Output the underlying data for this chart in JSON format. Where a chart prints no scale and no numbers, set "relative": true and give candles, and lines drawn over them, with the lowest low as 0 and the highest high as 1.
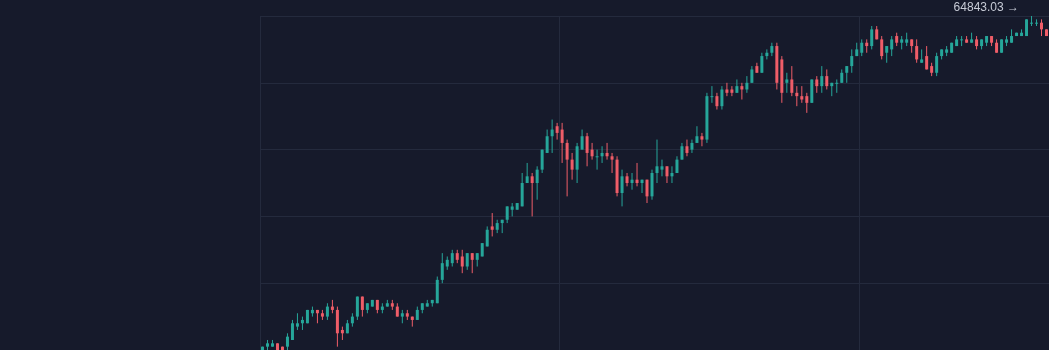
{
  "chart_data": {
    "type": "candlestick",
    "relative": true,
    "grid": true,
    "annotations": [
      "64843.03 →"
    ],
    "categories": [
      null,
      null,
      null,
      null,
      null,
      null,
      null,
      null,
      null,
      null,
      null,
      null,
      null,
      null,
      null,
      null,
      null,
      null,
      null,
      null,
      null,
      null,
      null,
      null,
      null,
      null,
      null,
      null,
      null,
      null,
      null,
      null,
      null,
      null,
      null,
      null,
      null,
      null,
      null,
      null,
      null,
      null,
      null,
      null,
      null,
      null,
      null,
      null,
      null,
      null,
      null,
      null,
      null,
      null,
      null,
      null,
      null,
      null,
      null,
      null,
      null,
      null,
      null,
      null,
      null,
      null,
      null,
      null,
      null,
      null,
      null,
      null,
      null,
      null,
      null,
      null,
      null,
      null,
      null,
      null,
      null,
      null,
      null,
      null,
      null,
      null,
      null,
      null,
      null,
      null,
      null,
      null,
      null,
      null,
      null,
      null,
      null,
      null,
      null,
      null,
      null,
      null,
      null,
      null,
      null,
      null,
      null,
      null,
      null,
      null,
      null,
      null,
      null,
      null,
      null,
      null,
      null,
      null,
      null,
      null,
      null,
      null,
      null,
      null,
      null,
      null,
      null,
      null,
      null,
      null,
      null,
      null,
      null,
      null,
      null,
      null,
      null,
      null,
      null,
      null,
      null,
      null,
      null,
      null,
      null,
      null,
      null,
      null,
      null,
      null,
      null,
      null,
      null,
      null,
      null,
      null,
      null,
      null
    ],
    "ohlc": [
      [
        0,
        0.01,
        0,
        0.01
      ],
      [
        0.01,
        0.03,
        0,
        0.02
      ],
      [
        0.01,
        0.03,
        0.01,
        0.02
      ],
      [
        0.02,
        0.02,
        0,
        0
      ],
      [
        0.01,
        0.01,
        0,
        0
      ],
      [
        0.01,
        0.05,
        0,
        0.04
      ],
      [
        0.03,
        0.09,
        0.03,
        0.08
      ],
      [
        0.07,
        0.11,
        0.06,
        0.08
      ],
      [
        0.08,
        0.1,
        0.06,
        0.09
      ],
      [
        0.08,
        0.12,
        0.08,
        0.12
      ],
      [
        0.11,
        0.13,
        0.1,
        0.12
      ],
      [
        0.12,
        0.12,
        0.08,
        0.11
      ],
      [
        0.11,
        0.12,
        0.09,
        0.1
      ],
      [
        0.1,
        0.14,
        0.09,
        0.13
      ],
      [
        0.13,
        0.15,
        0.11,
        0.12
      ],
      [
        0.12,
        0.13,
        0.01,
        0.05
      ],
      [
        0.06,
        0.07,
        0.03,
        0.05
      ],
      [
        0.05,
        0.09,
        0.05,
        0.08
      ],
      [
        0.08,
        0.11,
        0.07,
        0.1
      ],
      [
        0.1,
        0.16,
        0.09,
        0.16
      ],
      [
        0.16,
        0.16,
        0.1,
        0.12
      ],
      [
        0.12,
        0.14,
        0.11,
        0.14
      ],
      [
        0.13,
        0.15,
        0.13,
        0.15
      ],
      [
        0.15,
        0.15,
        0.11,
        0.12
      ],
      [
        0.12,
        0.14,
        0.11,
        0.13
      ],
      [
        0.13,
        0.15,
        0.13,
        0.14
      ],
      [
        0.14,
        0.15,
        0.12,
        0.13
      ],
      [
        0.13,
        0.14,
        0.1,
        0.1
      ],
      [
        0.1,
        0.12,
        0.08,
        0.11
      ],
      [
        0.11,
        0.12,
        0.09,
        0.1
      ],
      [
        0.1,
        0.1,
        0.07,
        0.09
      ],
      [
        0.09,
        0.13,
        0.09,
        0.12
      ],
      [
        0.12,
        0.14,
        0.11,
        0.14
      ],
      [
        0.13,
        0.15,
        0.13,
        0.14
      ],
      [
        0.14,
        0.15,
        0.13,
        0.15
      ],
      [
        0.14,
        0.22,
        0.14,
        0.21
      ],
      [
        0.21,
        0.29,
        0.2,
        0.26
      ],
      [
        0.25,
        0.28,
        0.24,
        0.27
      ],
      [
        0.26,
        0.3,
        0.25,
        0.29
      ],
      [
        0.29,
        0.3,
        0.26,
        0.27
      ],
      [
        0.28,
        0.3,
        0.23,
        0.25
      ],
      [
        0.25,
        0.29,
        0.24,
        0.29
      ],
      [
        0.29,
        0.29,
        0.23,
        0.27
      ],
      [
        0.27,
        0.29,
        0.25,
        0.29
      ],
      [
        0.28,
        0.32,
        0.28,
        0.32
      ],
      [
        0.31,
        0.37,
        0.31,
        0.36
      ],
      [
        0.37,
        0.41,
        0.34,
        0.36
      ],
      [
        0.36,
        0.39,
        0.35,
        0.38
      ],
      [
        0.38,
        0.39,
        0.35,
        0.39
      ],
      [
        0.39,
        0.43,
        0.38,
        0.43
      ],
      [
        0.42,
        0.44,
        0.4,
        0.43
      ],
      [
        0.42,
        0.44,
        0.42,
        0.44
      ],
      [
        0.43,
        0.53,
        0.43,
        0.5
      ],
      [
        0.5,
        0.56,
        0.5,
        0.52
      ],
      [
        0.52,
        0.53,
        0.4,
        0.5
      ],
      [
        0.5,
        0.55,
        0.45,
        0.54
      ],
      [
        0.54,
        0.6,
        0.53,
        0.6
      ],
      [
        0.59,
        0.66,
        0.59,
        0.64
      ],
      [
        0.64,
        0.69,
        0.59,
        0.66
      ],
      [
        0.67,
        0.68,
        0.63,
        0.65
      ],
      [
        0.66,
        0.68,
        0.56,
        0.62
      ],
      [
        0.62,
        0.63,
        0.46,
        0.57
      ],
      [
        0.57,
        0.59,
        0.51,
        0.54
      ],
      [
        0.54,
        0.62,
        0.5,
        0.61
      ],
      [
        0.6,
        0.66,
        0.6,
        0.64
      ],
      [
        0.64,
        0.65,
        0.55,
        0.59
      ],
      [
        0.6,
        0.62,
        0.57,
        0.58
      ],
      [
        0.58,
        0.6,
        0.54,
        0.58
      ],
      [
        0.58,
        0.61,
        0.56,
        0.59
      ],
      [
        0.59,
        0.62,
        0.57,
        0.58
      ],
      [
        0.58,
        0.59,
        0.53,
        0.57
      ],
      [
        0.57,
        0.58,
        0.46,
        0.47
      ],
      [
        0.47,
        0.54,
        0.43,
        0.52
      ],
      [
        0.52,
        0.53,
        0.49,
        0.5
      ],
      [
        0.5,
        0.53,
        0.48,
        0.51
      ],
      [
        0.51,
        0.56,
        0.49,
        0.5
      ],
      [
        0.5,
        0.51,
        0.47,
        0.51
      ],
      [
        0.51,
        0.51,
        0.44,
        0.46
      ],
      [
        0.46,
        0.54,
        0.45,
        0.53
      ],
      [
        0.53,
        0.63,
        0.5,
        0.55
      ],
      [
        0.54,
        0.57,
        0.52,
        0.55
      ],
      [
        0.55,
        0.55,
        0.5,
        0.52
      ],
      [
        0.52,
        0.55,
        0.5,
        0.53
      ],
      [
        0.53,
        0.58,
        0.53,
        0.57
      ],
      [
        0.57,
        0.62,
        0.57,
        0.61
      ],
      [
        0.61,
        0.63,
        0.58,
        0.59
      ],
      [
        0.6,
        0.63,
        0.59,
        0.62
      ],
      [
        0.62,
        0.67,
        0.62,
        0.64
      ],
      [
        0.64,
        0.65,
        0.61,
        0.63
      ],
      [
        0.63,
        0.77,
        0.62,
        0.76
      ],
      [
        0.76,
        0.79,
        0.74,
        0.76
      ],
      [
        0.76,
        0.77,
        0.72,
        0.73
      ],
      [
        0.73,
        0.79,
        0.72,
        0.78
      ],
      [
        0.78,
        0.8,
        0.76,
        0.77
      ],
      [
        0.78,
        0.79,
        0.76,
        0.77
      ],
      [
        0.77,
        0.81,
        0.77,
        0.79
      ],
      [
        0.79,
        0.8,
        0.75,
        0.78
      ],
      [
        0.78,
        0.82,
        0.77,
        0.8
      ],
      [
        0.8,
        0.85,
        0.8,
        0.84
      ],
      [
        0.85,
        0.86,
        0.83,
        0.83
      ],
      [
        0.83,
        0.89,
        0.83,
        0.88
      ],
      [
        0.88,
        0.9,
        0.87,
        0.89
      ],
      [
        0.89,
        0.92,
        0.88,
        0.91
      ],
      [
        0.91,
        0.92,
        0.78,
        0.8
      ],
      [
        0.87,
        0.88,
        0.74,
        0.77
      ],
      [
        0.8,
        0.83,
        0.77,
        0.81
      ],
      [
        0.81,
        0.85,
        0.76,
        0.77
      ],
      [
        0.77,
        0.79,
        0.73,
        0.76
      ],
      [
        0.76,
        0.79,
        0.74,
        0.75
      ],
      [
        0.76,
        0.77,
        0.71,
        0.74
      ],
      [
        0.74,
        0.81,
        0.74,
        0.81
      ],
      [
        0.81,
        0.82,
        0.77,
        0.79
      ],
      [
        0.79,
        0.85,
        0.77,
        0.82
      ],
      [
        0.82,
        0.84,
        0.78,
        0.79
      ],
      [
        0.79,
        0.8,
        0.76,
        0.8
      ],
      [
        0.8,
        0.81,
        0.77,
        0.8
      ],
      [
        0.8,
        0.84,
        0.8,
        0.83
      ],
      [
        0.83,
        0.85,
        0.8,
        0.85
      ],
      [
        0.85,
        0.9,
        0.83,
        0.88
      ],
      [
        0.88,
        0.92,
        0.88,
        0.9
      ],
      [
        0.89,
        0.93,
        0.88,
        0.92
      ],
      [
        0.92,
        0.93,
        0.89,
        0.91
      ],
      [
        0.91,
        0.97,
        0.9,
        0.96
      ],
      [
        0.96,
        0.97,
        0.93,
        0.93
      ],
      [
        0.93,
        0.94,
        0.87,
        0.88
      ],
      [
        0.89,
        0.91,
        0.86,
        0.91
      ],
      [
        0.9,
        0.94,
        0.88,
        0.93
      ],
      [
        0.94,
        0.95,
        0.91,
        0.92
      ],
      [
        0.92,
        0.94,
        0.9,
        0.93
      ],
      [
        0.92,
        0.95,
        0.91,
        0.93
      ],
      [
        0.93,
        0.93,
        0.89,
        0.91
      ],
      [
        0.91,
        0.93,
        0.86,
        0.87
      ],
      [
        0.86,
        0.9,
        0.86,
        0.87
      ],
      [
        0.88,
        0.91,
        0.84,
        0.84
      ],
      [
        0.85,
        0.86,
        0.82,
        0.83
      ],
      [
        0.83,
        0.89,
        0.82,
        0.88
      ],
      [
        0.88,
        0.9,
        0.87,
        0.9
      ],
      [
        0.89,
        0.91,
        0.88,
        0.9
      ],
      [
        0.89,
        0.92,
        0.89,
        0.92
      ],
      [
        0.91,
        0.94,
        0.91,
        0.93
      ],
      [
        0.93,
        0.94,
        0.91,
        0.93
      ],
      [
        0.93,
        0.94,
        0.92,
        0.92
      ],
      [
        0.92,
        0.95,
        0.92,
        0.93
      ],
      [
        0.93,
        0.94,
        0.9,
        0.91
      ],
      [
        0.91,
        0.93,
        0.9,
        0.93
      ],
      [
        0.92,
        0.94,
        0.91,
        0.94
      ],
      [
        0.94,
        0.94,
        0.91,
        0.92
      ],
      [
        0.92,
        0.93,
        0.89,
        0.89
      ],
      [
        0.89,
        0.93,
        0.89,
        0.93
      ],
      [
        0.92,
        0.94,
        0.91,
        0.93
      ],
      [
        0.92,
        0.96,
        0.92,
        0.94
      ],
      [
        0.94,
        0.95,
        0.94,
        0.95
      ],
      [
        0.94,
        0.96,
        0.94,
        0.95
      ],
      [
        0.94,
        0.99,
        0.94,
        0.99
      ],
      [
        0.98,
        1,
        0.97,
        0.98
      ],
      [
        0.98,
        0.99,
        0.97,
        0.98
      ],
      [
        0.98,
        0.99,
        0.94,
        0.96
      ],
      [
        0.96,
        0.96,
        0.94,
        0.94
      ]
    ]
  }
}
